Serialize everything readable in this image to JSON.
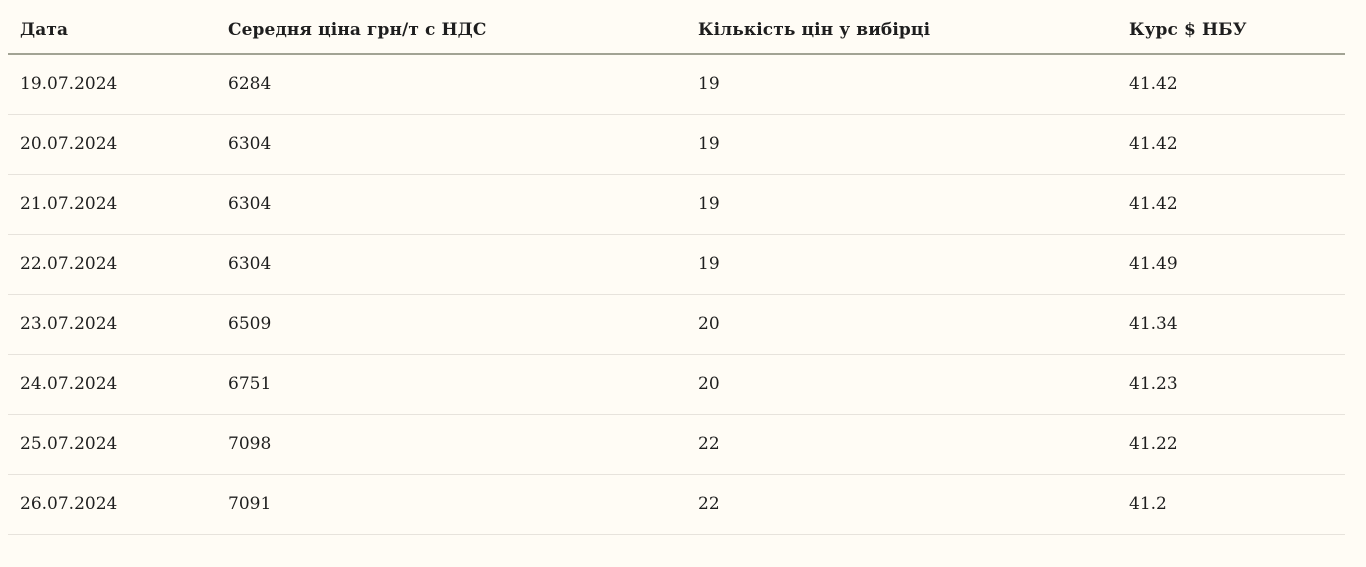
{
  "colors": {
    "page_background": "#fffcf5",
    "text": "#1e1e1e",
    "header_underline": "#a2a394",
    "row_divider": "#e7e3dc"
  },
  "table": {
    "columns": [
      {
        "id": "date",
        "label": "Дата"
      },
      {
        "id": "avg_price",
        "label": "Середня ціна грн/т с НДС"
      },
      {
        "id": "sample_count",
        "label": "Кількість цін у вибірці"
      },
      {
        "id": "usd_rate",
        "label": "Курс $ НБУ"
      }
    ],
    "rows": [
      {
        "date": "19.07.2024",
        "avg_price": "6284",
        "sample_count": "19",
        "usd_rate": "41.42"
      },
      {
        "date": "20.07.2024",
        "avg_price": "6304",
        "sample_count": "19",
        "usd_rate": "41.42"
      },
      {
        "date": "21.07.2024",
        "avg_price": "6304",
        "sample_count": "19",
        "usd_rate": "41.42"
      },
      {
        "date": "22.07.2024",
        "avg_price": "6304",
        "sample_count": "19",
        "usd_rate": "41.49"
      },
      {
        "date": "23.07.2024",
        "avg_price": "6509",
        "sample_count": "20",
        "usd_rate": "41.34"
      },
      {
        "date": "24.07.2024",
        "avg_price": "6751",
        "sample_count": "20",
        "usd_rate": "41.23"
      },
      {
        "date": "25.07.2024",
        "avg_price": "7098",
        "sample_count": "22",
        "usd_rate": "41.22"
      },
      {
        "date": "26.07.2024",
        "avg_price": "7091",
        "sample_count": "22",
        "usd_rate": "41.2"
      }
    ]
  },
  "chart_data": {
    "type": "table",
    "title": "",
    "columns": [
      "Дата",
      "Середня ціна грн/т с НДС",
      "Кількість цін у вибірці",
      "Курс $ НБУ"
    ],
    "rows": [
      [
        "19.07.2024",
        6284,
        19,
        41.42
      ],
      [
        "20.07.2024",
        6304,
        19,
        41.42
      ],
      [
        "21.07.2024",
        6304,
        19,
        41.42
      ],
      [
        "22.07.2024",
        6304,
        19,
        41.49
      ],
      [
        "23.07.2024",
        6509,
        20,
        41.34
      ],
      [
        "24.07.2024",
        6751,
        20,
        41.23
      ],
      [
        "25.07.2024",
        7098,
        22,
        41.22
      ],
      [
        "26.07.2024",
        7091,
        22,
        41.2
      ]
    ]
  }
}
